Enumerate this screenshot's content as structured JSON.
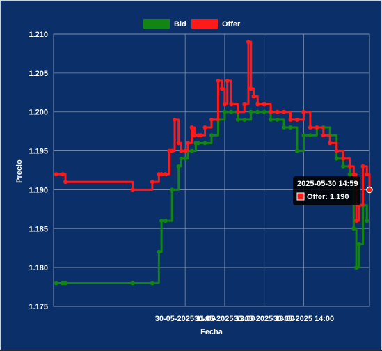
{
  "chart_data": {
    "type": "line",
    "title": "",
    "xlabel": "Fecha",
    "ylabel": "Precio",
    "ylim": [
      1.175,
      1.21
    ],
    "y_ticks": [
      "1.210",
      "1.205",
      "1.200",
      "1.195",
      "1.190",
      "1.185",
      "1.180",
      "1.175"
    ],
    "x_tick_labels": [
      "30-05-2025 11:00",
      "30-05-2025 12:00",
      "30-05-2025 13:00",
      "30-05-2025 14:00"
    ],
    "x_tick_times": [
      "10:30",
      "11:00",
      "11:30",
      "12:00"
    ],
    "x_range": [
      "08:50",
      "12:50"
    ],
    "grid": true,
    "legend_position": "top-center",
    "series": [
      {
        "name": "Bid",
        "color": "#128512",
        "x": [
          "08:52",
          "08:57",
          "08:59",
          "09:50",
          "10:05",
          "10:10",
          "10:12",
          "10:15",
          "10:20",
          "10:25",
          "10:27",
          "10:30",
          "10:32",
          "10:35",
          "10:38",
          "10:40",
          "10:45",
          "10:50",
          "10:55",
          "11:00",
          "11:05",
          "11:10",
          "11:15",
          "11:20",
          "11:25",
          "11:30",
          "11:35",
          "11:40",
          "11:45",
          "11:50",
          "11:55",
          "12:00",
          "12:05",
          "12:10",
          "12:15",
          "12:20",
          "12:25",
          "12:30",
          "12:35",
          "12:38",
          "12:40",
          "12:42",
          "12:45",
          "12:48"
        ],
        "y": [
          1.178,
          1.178,
          1.178,
          1.178,
          1.178,
          1.182,
          1.186,
          1.186,
          1.19,
          1.193,
          1.194,
          1.194,
          1.195,
          1.195,
          1.196,
          1.196,
          1.196,
          1.197,
          1.199,
          1.2,
          1.2,
          1.199,
          1.199,
          1.2,
          1.2,
          1.2,
          1.199,
          1.199,
          1.198,
          1.198,
          1.195,
          1.197,
          1.197,
          1.198,
          1.198,
          1.197,
          1.194,
          1.193,
          1.192,
          1.185,
          1.18,
          1.183,
          1.188,
          1.186
        ]
      },
      {
        "name": "Offer",
        "color": "#ff1a1a",
        "x": [
          "08:52",
          "08:57",
          "08:59",
          "09:50",
          "10:05",
          "10:10",
          "10:12",
          "10:15",
          "10:18",
          "10:20",
          "10:22",
          "10:25",
          "10:27",
          "10:30",
          "10:32",
          "10:35",
          "10:37",
          "10:40",
          "10:42",
          "10:45",
          "10:50",
          "10:55",
          "10:58",
          "11:00",
          "11:02",
          "11:05",
          "11:10",
          "11:15",
          "11:18",
          "11:20",
          "11:22",
          "11:25",
          "11:30",
          "11:35",
          "11:40",
          "11:45",
          "11:50",
          "11:55",
          "12:00",
          "12:05",
          "12:10",
          "12:15",
          "12:20",
          "12:25",
          "12:30",
          "12:35",
          "12:38",
          "12:40",
          "12:42",
          "12:45",
          "12:48",
          "12:50"
        ],
        "y": [
          1.192,
          1.192,
          1.191,
          1.19,
          1.191,
          1.192,
          1.192,
          1.192,
          1.195,
          1.195,
          1.199,
          1.196,
          1.195,
          1.195,
          1.196,
          1.198,
          1.197,
          1.197,
          1.197,
          1.198,
          1.199,
          1.204,
          1.203,
          1.201,
          1.204,
          1.201,
          1.2,
          1.201,
          1.209,
          1.203,
          1.202,
          1.201,
          1.201,
          1.2,
          1.2,
          1.2,
          1.199,
          1.199,
          1.2,
          1.198,
          1.198,
          1.197,
          1.196,
          1.195,
          1.194,
          1.193,
          1.192,
          1.186,
          1.188,
          1.193,
          1.192,
          1.19
        ]
      }
    ],
    "tooltip": {
      "title": "2025-05-30 14:59",
      "line": "Offer: 1.190",
      "series": "Offer",
      "x": "12:50",
      "y": 1.19
    }
  }
}
